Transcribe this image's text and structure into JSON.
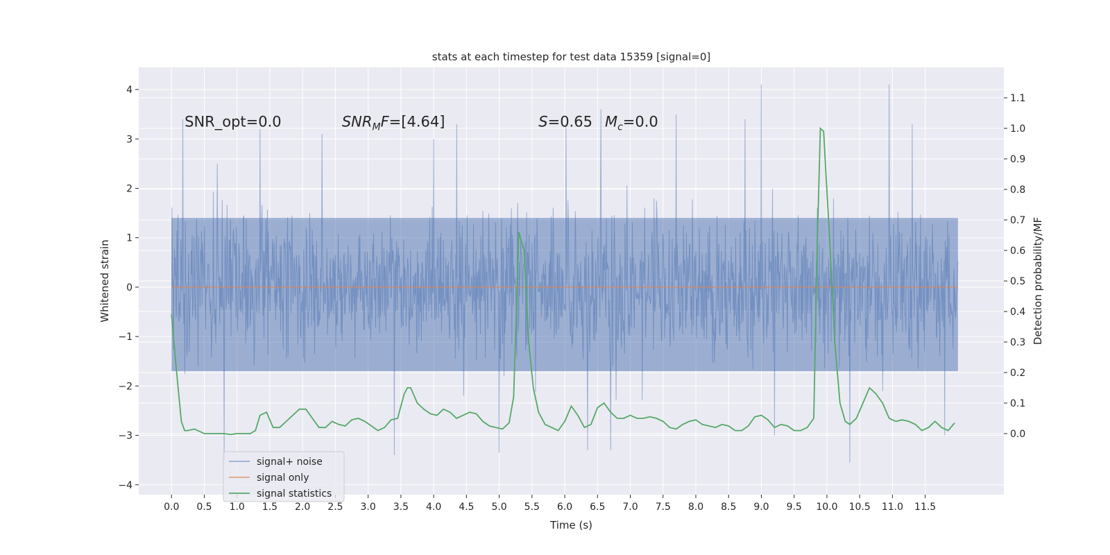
{
  "chart_data": {
    "type": "line",
    "title": "stats at each timestep for test data 15359 [signal=0]",
    "xlabel": "Time (s)",
    "ylabel": "Whitened strain",
    "ylabel_right": "Detection probability/MF",
    "xlim": [
      -0.5,
      12.7
    ],
    "ylim": [
      -4.2,
      4.45
    ],
    "ylim_right": [
      -0.2,
      1.2
    ],
    "x_ticks": [
      "0.0",
      "0.5",
      "1.0",
      "1.5",
      "2.0",
      "2.5",
      "3.0",
      "3.5",
      "4.0",
      "4.5",
      "5.0",
      "5.5",
      "6.0",
      "6.5",
      "7.0",
      "7.5",
      "8.0",
      "8.5",
      "9.0",
      "9.5",
      "10.0",
      "10.5",
      "11.0",
      "11.5"
    ],
    "y_ticks": [
      "−4",
      "−3",
      "−2",
      "−1",
      "0",
      "1",
      "2",
      "3",
      "4"
    ],
    "y_ticks_right": [
      "0.0",
      "0.1",
      "0.2",
      "0.3",
      "0.4",
      "0.5",
      "0.6",
      "0.7",
      "0.8",
      "0.9",
      "1.0",
      "1.1"
    ],
    "grid": true,
    "legend_position": "lower-left",
    "annotations": [
      {
        "text": "SNR_opt=0.0",
        "x": 0.2,
        "y": 3.25
      },
      {
        "text": "SNRMF=[4.64]",
        "x": 2.6,
        "y": 3.25
      },
      {
        "text": "S=0.65   Mc=0.0",
        "x": 5.6,
        "y": 3.25
      }
    ],
    "series": [
      {
        "name": "signal+ noise",
        "axis": "left",
        "color": "#4c72b0",
        "style": "dense noise trace, alpha 0.5",
        "x_range": [
          0.0,
          12.0
        ],
        "core_range": [
          -1.7,
          1.4
        ],
        "max_value": 4.1,
        "min_value": -3.6,
        "peaks": [
          {
            "x": 0.17,
            "y": 3.4
          },
          {
            "x": 0.7,
            "y": 2.5
          },
          {
            "x": 1.35,
            "y": 3.2
          },
          {
            "x": 2.3,
            "y": 3.1
          },
          {
            "x": 4.0,
            "y": 3.0
          },
          {
            "x": 4.35,
            "y": 3.3
          },
          {
            "x": 6.02,
            "y": 3.3
          },
          {
            "x": 6.55,
            "y": 3.6
          },
          {
            "x": 7.7,
            "y": 3.5
          },
          {
            "x": 8.75,
            "y": 3.4
          },
          {
            "x": 9.0,
            "y": 4.1
          },
          {
            "x": 10.95,
            "y": 4.1
          },
          {
            "x": 11.3,
            "y": 3.3
          },
          {
            "x": 11.8,
            "y": 3.0
          }
        ],
        "troughs": [
          {
            "x": 0.8,
            "y": -3.5
          },
          {
            "x": 3.4,
            "y": -3.4
          },
          {
            "x": 5.0,
            "y": -3.35
          },
          {
            "x": 6.35,
            "y": -3.3
          },
          {
            "x": 6.7,
            "y": -3.3
          },
          {
            "x": 9.2,
            "y": -3.0
          },
          {
            "x": 10.35,
            "y": -3.55
          },
          {
            "x": 11.8,
            "y": -3.0
          }
        ]
      },
      {
        "name": "signal only",
        "axis": "left",
        "color": "#dd8452",
        "x": [
          0.0,
          12.0
        ],
        "y": [
          0.0,
          0.0
        ]
      },
      {
        "name": "signal statistics",
        "axis": "right",
        "color": "#55a868",
        "x": [
          0.0,
          0.07,
          0.15,
          0.2,
          0.25,
          0.35,
          0.45,
          0.5,
          0.6,
          0.7,
          0.8,
          0.9,
          1.0,
          1.1,
          1.2,
          1.28,
          1.35,
          1.45,
          1.55,
          1.65,
          1.75,
          1.85,
          1.95,
          2.05,
          2.15,
          2.25,
          2.35,
          2.45,
          2.55,
          2.65,
          2.75,
          2.85,
          2.95,
          3.05,
          3.15,
          3.25,
          3.35,
          3.45,
          3.55,
          3.6,
          3.65,
          3.75,
          3.85,
          3.95,
          4.05,
          4.15,
          4.25,
          4.35,
          4.45,
          4.55,
          4.65,
          4.75,
          4.85,
          4.95,
          5.05,
          5.15,
          5.22,
          5.3,
          5.38,
          5.45,
          5.52,
          5.6,
          5.7,
          5.8,
          5.9,
          6.0,
          6.1,
          6.2,
          6.3,
          6.4,
          6.5,
          6.6,
          6.7,
          6.8,
          6.9,
          7.0,
          7.1,
          7.2,
          7.3,
          7.4,
          7.5,
          7.6,
          7.7,
          7.8,
          7.9,
          8.0,
          8.1,
          8.2,
          8.3,
          8.4,
          8.5,
          8.6,
          8.7,
          8.8,
          8.9,
          9.0,
          9.1,
          9.2,
          9.3,
          9.4,
          9.5,
          9.6,
          9.7,
          9.8,
          9.85,
          9.9,
          9.95,
          10.05,
          10.12,
          10.2,
          10.28,
          10.35,
          10.45,
          10.55,
          10.65,
          10.75,
          10.85,
          10.95,
          11.05,
          11.15,
          11.25,
          11.35,
          11.45,
          11.55,
          11.65,
          11.75,
          11.85,
          11.95
        ],
        "y": [
          0.39,
          0.22,
          0.04,
          0.01,
          0.01,
          0.015,
          0.005,
          0.0,
          0.0,
          0.0,
          0.0,
          -0.003,
          0.0,
          0.0,
          0.0,
          0.01,
          0.06,
          0.07,
          0.02,
          0.02,
          0.04,
          0.06,
          0.08,
          0.08,
          0.05,
          0.02,
          0.02,
          0.04,
          0.03,
          0.025,
          0.045,
          0.05,
          0.04,
          0.025,
          0.01,
          0.02,
          0.045,
          0.05,
          0.13,
          0.15,
          0.15,
          0.1,
          0.08,
          0.065,
          0.06,
          0.08,
          0.07,
          0.05,
          0.06,
          0.07,
          0.065,
          0.04,
          0.025,
          0.02,
          0.015,
          0.035,
          0.12,
          0.66,
          0.6,
          0.3,
          0.15,
          0.07,
          0.03,
          0.02,
          0.01,
          0.04,
          0.09,
          0.06,
          0.02,
          0.03,
          0.085,
          0.1,
          0.07,
          0.05,
          0.05,
          0.06,
          0.05,
          0.05,
          0.055,
          0.05,
          0.04,
          0.02,
          0.015,
          0.03,
          0.04,
          0.045,
          0.03,
          0.025,
          0.02,
          0.03,
          0.025,
          0.01,
          0.01,
          0.025,
          0.055,
          0.06,
          0.045,
          0.02,
          0.03,
          0.025,
          0.01,
          0.01,
          0.02,
          0.05,
          0.6,
          1.0,
          0.99,
          0.6,
          0.3,
          0.1,
          0.04,
          0.03,
          0.05,
          0.1,
          0.15,
          0.13,
          0.1,
          0.05,
          0.04,
          0.045,
          0.04,
          0.03,
          0.01,
          0.02,
          0.04,
          0.02,
          0.01,
          0.035
        ]
      }
    ]
  }
}
